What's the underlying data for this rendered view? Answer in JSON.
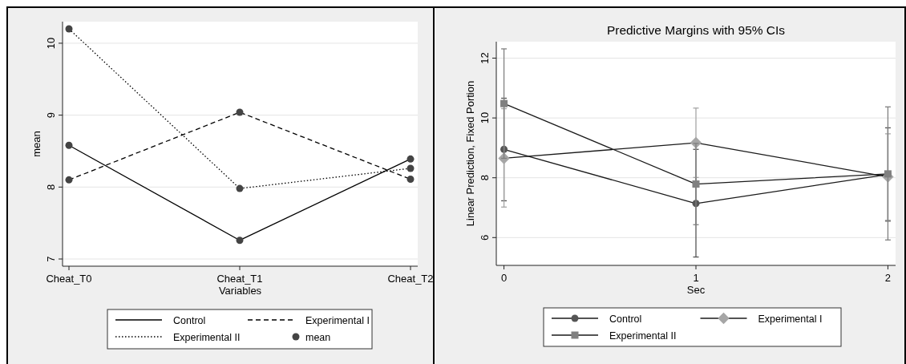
{
  "chart_data": [
    {
      "type": "line",
      "categories": [
        "Cheat_T0",
        "Cheat_T1",
        "Cheat_T2"
      ],
      "xlabel": "Variables",
      "ylabel": "mean",
      "ylim": [
        6.9,
        10.3
      ],
      "yticks": [
        7,
        8,
        9,
        10
      ],
      "grid": "y",
      "legend": "bottom",
      "series": [
        {
          "name": "Control",
          "color": "#000000",
          "values": [
            8.58,
            7.26,
            8.39
          ],
          "line_style": "solid",
          "marker": "none"
        },
        {
          "name": "Experimental I",
          "color": "#000000",
          "values": [
            8.1,
            9.04,
            8.11
          ],
          "line_style": "dashed",
          "marker": "none"
        },
        {
          "name": "Experimental II",
          "color": "#000000",
          "values": [
            10.2,
            7.98,
            8.26
          ],
          "line_style": "dotted",
          "marker": "none"
        },
        {
          "name": "mean",
          "type": "scatter",
          "color": "#444444",
          "marker": "circle",
          "x": [
            "Cheat_T0",
            "Cheat_T1",
            "Cheat_T2",
            "Cheat_T0",
            "Cheat_T1",
            "Cheat_T2",
            "Cheat_T0",
            "Cheat_T1",
            "Cheat_T2"
          ],
          "values": [
            8.58,
            7.26,
            8.39,
            8.1,
            9.04,
            8.11,
            10.2,
            7.98,
            8.26
          ]
        }
      ]
    },
    {
      "type": "line",
      "title": "Predictive Margins with 95% CIs",
      "xlabel": "Sec",
      "ylabel": "Linear Prediction, Fixed Portion",
      "x": [
        0,
        1,
        2
      ],
      "xlim": [
        -0.04,
        2.04
      ],
      "xticks": [
        0,
        1,
        2
      ],
      "ylim": [
        5.07,
        12.55
      ],
      "yticks": [
        6,
        8,
        10,
        12
      ],
      "grid": "y",
      "legend": "bottom",
      "series": [
        {
          "name": "Control",
          "color": "#555555",
          "marker": "circle",
          "line_style": "solid",
          "values": [
            8.95,
            7.14,
            8.11
          ],
          "errors": [
            [
              7.23,
              10.66
            ],
            [
              5.35,
              8.95
            ],
            [
              6.55,
              9.67
            ]
          ]
        },
        {
          "name": "Experimental I",
          "color": "#a6a6a6",
          "marker": "diamond",
          "line_style": "solid",
          "values": [
            8.65,
            9.17,
            8.03
          ],
          "errors": [
            [
              7.02,
              10.31
            ],
            [
              8.01,
              10.33
            ],
            [
              6.58,
              9.47
            ]
          ]
        },
        {
          "name": "Experimental II",
          "color": "#808080",
          "marker": "square",
          "line_style": "solid",
          "values": [
            10.48,
            7.79,
            8.13
          ],
          "errors": [
            [
              8.65,
              12.31
            ],
            [
              6.43,
              9.15
            ],
            [
              5.92,
              10.37
            ]
          ]
        }
      ]
    }
  ]
}
